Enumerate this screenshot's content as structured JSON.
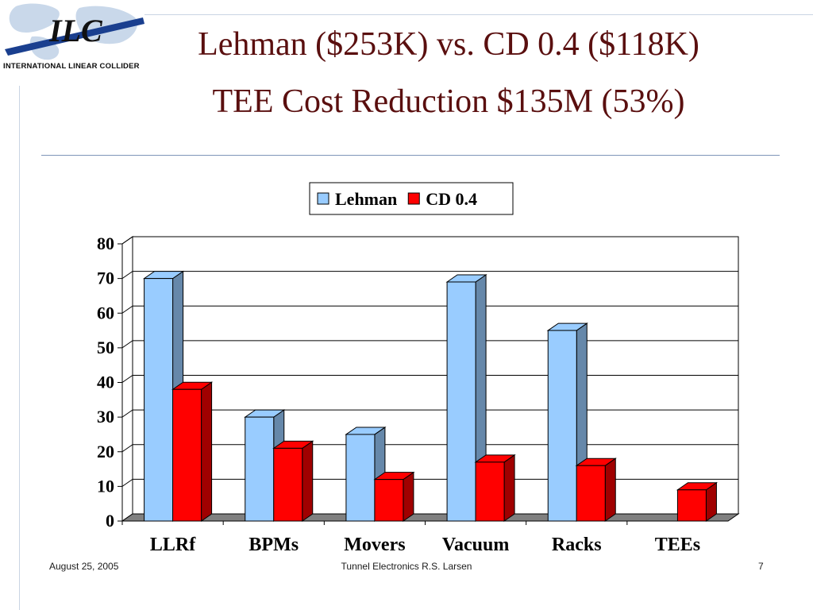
{
  "slide": {
    "title_line1": "Lehman ($253K) vs. CD 0.4 ($118K)",
    "title_line2": "TEE Cost Reduction $135M (53%)",
    "logo_text": "International Linear Collider",
    "footer_date": "August 25, 2005",
    "footer_center": "Tunnel Electronics  R.S. Larsen",
    "page_number": "7"
  },
  "chart_data": {
    "type": "bar",
    "style": "3d-clustered",
    "categories": [
      "LLRf",
      "BPMs",
      "Movers",
      "Vacuum",
      "Racks",
      "TEEs"
    ],
    "series": [
      {
        "name": "Lehman",
        "values": [
          70,
          30,
          25,
          69,
          55,
          0
        ],
        "color": "#99ccff"
      },
      {
        "name": "CD 0.4",
        "values": [
          38,
          21,
          12,
          17,
          16,
          9
        ],
        "color": "#ff0000"
      }
    ],
    "yticks": [
      "0",
      "10",
      "20",
      "30",
      "40",
      "50",
      "60",
      "70",
      "80"
    ],
    "ylim": [
      0,
      80
    ],
    "grid": true,
    "legend_position": "top"
  }
}
